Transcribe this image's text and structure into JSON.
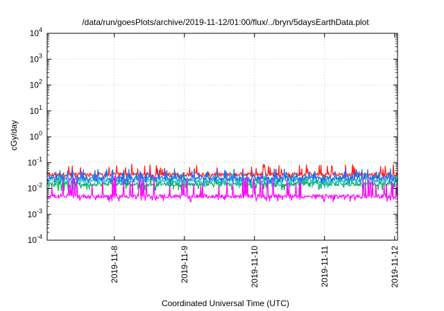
{
  "chart_data": {
    "type": "line",
    "title": "/data/run/goesPlots/archive/2019-11-12/01:00/flux/../bryn/5daysEarthData.plot",
    "xlabel": "Coordinated Universal Time (UTC)",
    "ylabel": "cGy/day",
    "y_scale": "log",
    "ylim": [
      0.0001,
      10000
    ],
    "y_ticks": [
      {
        "value": 0.0001,
        "base": "10",
        "exp": "-4"
      },
      {
        "value": 0.001,
        "base": "10",
        "exp": "-3"
      },
      {
        "value": 0.01,
        "base": "10",
        "exp": "-2"
      },
      {
        "value": 0.1,
        "base": "10",
        "exp": "-1"
      },
      {
        "value": 1,
        "base": "10",
        "exp": "0"
      },
      {
        "value": 10,
        "base": "10",
        "exp": "1"
      },
      {
        "value": 100,
        "base": "10",
        "exp": "2"
      },
      {
        "value": 1000,
        "base": "10",
        "exp": "3"
      },
      {
        "value": 10000,
        "base": "10",
        "exp": "4"
      }
    ],
    "xlim": [
      "2019-11-07T01:00",
      "2019-11-12T01:00"
    ],
    "x_ticks": [
      "2019-11-8",
      "2019-11-9",
      "2019-11-10",
      "2019-11-11",
      "2019-11-12"
    ],
    "x_tick_dates": [
      "2019-11-08",
      "2019-11-09",
      "2019-11-10",
      "2019-11-11",
      "2019-11-12"
    ],
    "grid": true,
    "series": [
      {
        "color": "#ff1a1a",
        "typical": 0.035,
        "spike_max": 0.09,
        "min": 0.02
      },
      {
        "color": "#00b060",
        "typical": 0.015,
        "spike_max": 0.035,
        "min": 0.008
      },
      {
        "color": "#20c0c0",
        "typical": 0.02,
        "spike_max": 0.04,
        "min": 0.01
      },
      {
        "color": "#1a6dff",
        "typical": 0.025,
        "spike_max": 0.06,
        "min": 0.015
      },
      {
        "color": "#ff00ff",
        "typical": 0.005,
        "spike_max": 0.03,
        "min": 0.003
      }
    ]
  }
}
